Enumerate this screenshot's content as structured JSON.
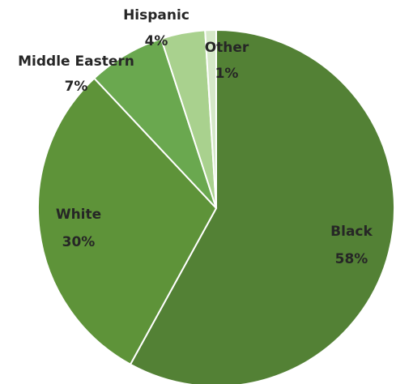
{
  "chart_data": {
    "type": "pie",
    "title": "",
    "slices": [
      {
        "label": "Black",
        "value": 58,
        "display": "58%",
        "color": "#538135"
      },
      {
        "label": "White",
        "value": 30,
        "display": "30%",
        "color": "#5e9339"
      },
      {
        "label": "Middle Eastern",
        "value": 7,
        "display": "7%",
        "color": "#6aa84f"
      },
      {
        "label": "Hispanic",
        "value": 4,
        "display": "4%",
        "color": "#a9d18e"
      },
      {
        "label": "Other",
        "value": 1,
        "display": "1%",
        "color": "#d5e8c8"
      }
    ],
    "start": "12 o'clock",
    "direction": "clockwise",
    "legend": "none",
    "data_labels": "category and percentage"
  }
}
